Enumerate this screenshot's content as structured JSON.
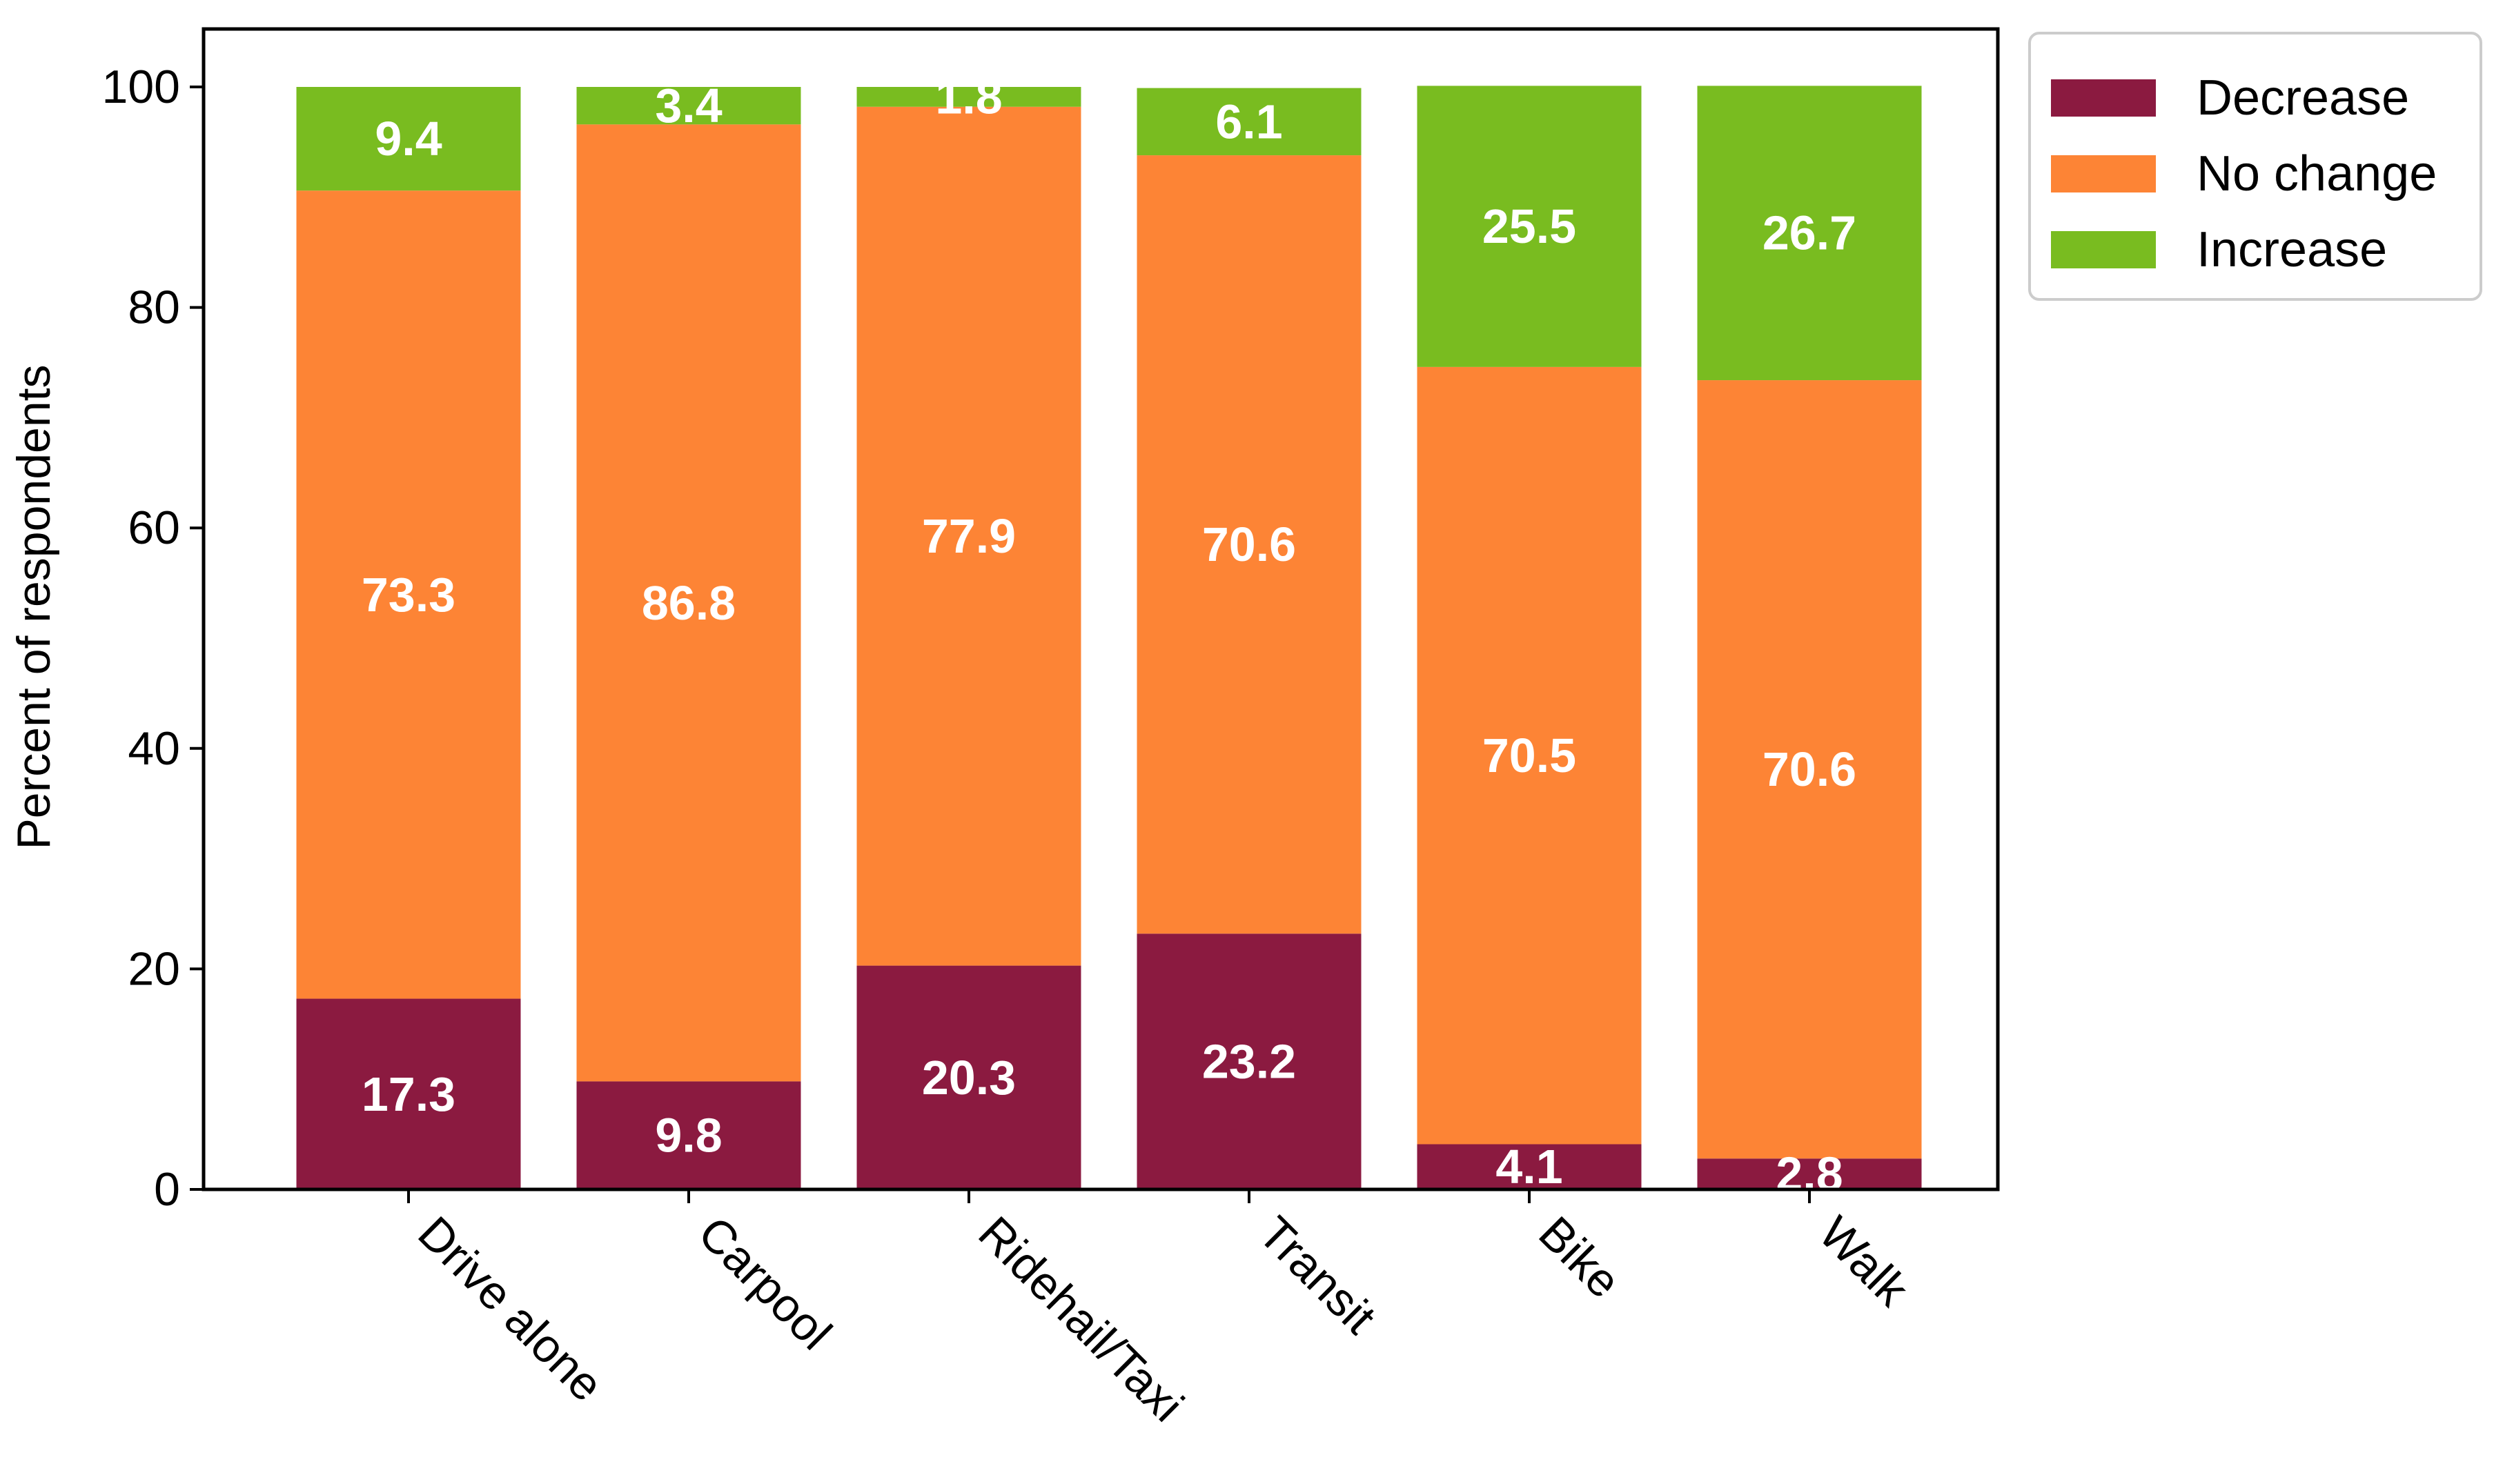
{
  "chart_data": {
    "type": "bar",
    "stacked": true,
    "title": "",
    "xlabel": "",
    "ylabel": "Percent of respondents",
    "ylim": [
      0,
      100
    ],
    "yticks": [
      0,
      20,
      40,
      60,
      80,
      100
    ],
    "yticks_labels": [
      "0",
      "20",
      "40",
      "60",
      "80",
      "100"
    ],
    "grid": false,
    "legend_position": "top-right, outside plot",
    "categories": [
      "Drive alone",
      "Carpool",
      "Ridehail/Taxi",
      "Transit",
      "Bike",
      "Walk"
    ],
    "series": [
      {
        "name": "Decrease",
        "color": "#8B1A40",
        "values": [
          17.3,
          9.8,
          20.3,
          23.2,
          4.1,
          2.8
        ],
        "labels": [
          "17.3",
          "9.8",
          "20.3",
          "23.2",
          "4.1",
          "2.8"
        ]
      },
      {
        "name": "No change",
        "color": "#FD8435",
        "values": [
          73.3,
          86.8,
          77.9,
          70.6,
          70.5,
          70.6
        ],
        "labels": [
          "73.3",
          "86.8",
          "77.9",
          "70.6",
          "70.5",
          "70.6"
        ]
      },
      {
        "name": "Increase",
        "color": "#79BC20",
        "values": [
          9.4,
          3.4,
          1.8,
          6.1,
          25.5,
          26.7
        ],
        "labels": [
          "9.4",
          "3.4",
          "1.8",
          "6.1",
          "25.5",
          "26.7"
        ]
      }
    ]
  }
}
